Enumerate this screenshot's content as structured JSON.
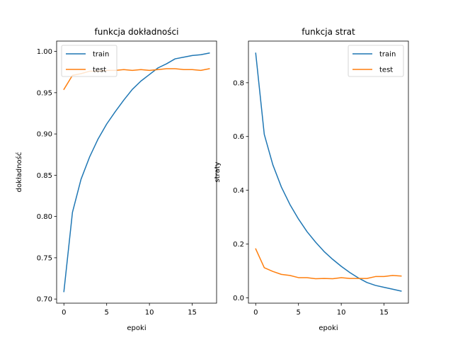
{
  "chart_data": [
    {
      "type": "line",
      "title": "funkcja dokładności",
      "xlabel": "epoki",
      "ylabel": "dokładność",
      "xlim": [
        -0.85,
        17.85
      ],
      "ylim": [
        0.695,
        1.0125
      ],
      "xticks": [
        0,
        5,
        10,
        15
      ],
      "yticks": [
        0.7,
        0.75,
        0.8,
        0.85,
        0.9,
        0.95,
        1.0
      ],
      "ytick_labels": [
        "0.70",
        "0.75",
        "0.80",
        "0.85",
        "0.90",
        "0.95",
        "1.00"
      ],
      "legend_position": "upper-left",
      "grid": false,
      "x": [
        0,
        1,
        2,
        3,
        4,
        5,
        6,
        7,
        8,
        9,
        10,
        11,
        12,
        13,
        14,
        15,
        16,
        17
      ],
      "series": [
        {
          "name": "train",
          "color": "#1f77b4",
          "values": [
            0.709,
            0.805,
            0.845,
            0.872,
            0.894,
            0.912,
            0.927,
            0.941,
            0.954,
            0.964,
            0.972,
            0.98,
            0.985,
            0.991,
            0.993,
            0.995,
            0.996,
            0.998
          ]
        },
        {
          "name": "test",
          "color": "#ff7f0e",
          "values": [
            0.954,
            0.971,
            0.973,
            0.976,
            0.976,
            0.977,
            0.977,
            0.978,
            0.977,
            0.978,
            0.977,
            0.978,
            0.979,
            0.979,
            0.978,
            0.978,
            0.977,
            0.979
          ]
        }
      ]
    },
    {
      "type": "line",
      "title": "funkcja strat",
      "xlabel": "epoki",
      "ylabel": "straty",
      "xlim": [
        -0.85,
        17.85
      ],
      "ylim": [
        -0.02,
        0.955
      ],
      "xticks": [
        0,
        5,
        10,
        15
      ],
      "yticks": [
        0.0,
        0.2,
        0.4,
        0.6,
        0.8
      ],
      "ytick_labels": [
        "0.0",
        "0.2",
        "0.4",
        "0.6",
        "0.8"
      ],
      "legend_position": "upper-right",
      "grid": false,
      "x": [
        0,
        1,
        2,
        3,
        4,
        5,
        6,
        7,
        8,
        9,
        10,
        11,
        12,
        13,
        14,
        15,
        16,
        17
      ],
      "series": [
        {
          "name": "train",
          "color": "#1f77b4",
          "values": [
            0.91,
            0.608,
            0.495,
            0.412,
            0.347,
            0.293,
            0.246,
            0.207,
            0.172,
            0.143,
            0.117,
            0.094,
            0.074,
            0.057,
            0.046,
            0.039,
            0.032,
            0.025
          ]
        },
        {
          "name": "test",
          "color": "#ff7f0e",
          "values": [
            0.182,
            0.112,
            0.098,
            0.087,
            0.083,
            0.075,
            0.075,
            0.071,
            0.072,
            0.071,
            0.075,
            0.072,
            0.072,
            0.072,
            0.079,
            0.079,
            0.083,
            0.081
          ]
        }
      ]
    }
  ]
}
